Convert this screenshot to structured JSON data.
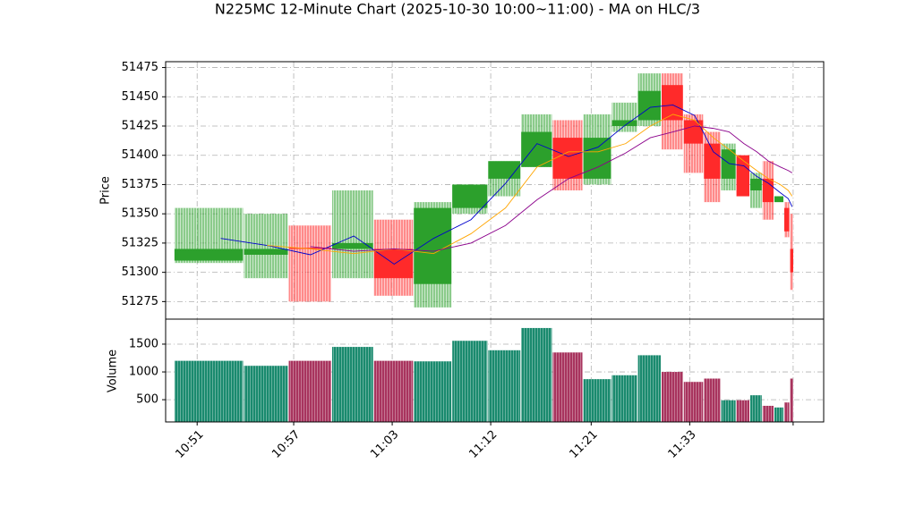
{
  "chart_data": {
    "type": "candlestick",
    "title": "N225MC 12-Minute Chart (2025-10-30 10:00~11:00) - MA on HLC/3",
    "ylabel": "Price",
    "volume_label": "Volume",
    "x": [
      0.24,
      0.71,
      1.15,
      1.59,
      2.0,
      2.4,
      2.78,
      3.13,
      3.45,
      3.77,
      4.07,
      4.35,
      4.6,
      4.83,
      5.05,
      5.24,
      5.4,
      5.55,
      5.68,
      5.8,
      5.92,
      6.0,
      6.04
    ],
    "xlim": [
      -0.32,
      6.36
    ],
    "xticks": [
      0,
      0.98,
      1.98,
      2.98,
      4.0,
      5.0,
      6.05
    ],
    "xtick_labels": [
      "10:51",
      "10:57",
      "11:03",
      "11:12",
      "11:21",
      "11:33",
      null
    ],
    "open": [
      51310,
      51315,
      51321,
      51320,
      51320,
      51290,
      51355,
      51380,
      51390,
      51415,
      51380,
      51425,
      51430,
      51460,
      51430,
      51410,
      51380,
      51400,
      51370,
      51380,
      51360,
      51355,
      51320
    ],
    "high": [
      51355,
      51350,
      51340,
      51370,
      51345,
      51360,
      51375,
      51395,
      51435,
      51430,
      51435,
      51445,
      51470,
      51470,
      51435,
      51420,
      51410,
      51400,
      51385,
      51395,
      51365,
      51360,
      51350
    ],
    "low": [
      51308,
      51295,
      51275,
      51295,
      51280,
      51270,
      51350,
      51365,
      51390,
      51370,
      51375,
      51420,
      51425,
      51405,
      51385,
      51360,
      51370,
      51365,
      51355,
      51345,
      51360,
      51330,
      51285
    ],
    "close": [
      51320,
      51320,
      51320,
      51325,
      51295,
      51355,
      51375,
      51395,
      51420,
      51380,
      51415,
      51430,
      51455,
      51430,
      51410,
      51380,
      51405,
      51365,
      51380,
      51360,
      51365,
      51335,
      51300
    ],
    "up_color": "#2ca02c",
    "down_color": "#ff2a2a",
    "volume": [
      1200,
      1110,
      1200,
      1450,
      1200,
      1190,
      1560,
      1390,
      1790,
      1350,
      870,
      940,
      1300,
      1000,
      820,
      880,
      490,
      490,
      580,
      390,
      360,
      450,
      880
    ],
    "volume_up_color": "#1a8a6e",
    "volume_down_color": "#a8345e",
    "ylim": [
      51260,
      51480
    ],
    "yticks": [
      51275,
      51300,
      51325,
      51350,
      51375,
      51400,
      51425,
      51450,
      51475
    ],
    "volume_ylim": [
      100,
      1950
    ],
    "volume_ticks": [
      500,
      1000,
      1500
    ],
    "grid": true,
    "ma": [
      {
        "color": "#0000cc",
        "values": [
          51329,
          51323,
          51315,
          51331,
          51307,
          51329,
          51345,
          51376,
          51410,
          51399,
          51407,
          51426,
          51441,
          51443,
          51434,
          51403,
          51393,
          51391,
          51382,
          51376,
          51368,
          51363,
          51356
        ]
      },
      {
        "color": "#ffa500",
        "values": [
          null,
          51323,
          51320,
          51316,
          51320,
          51316,
          51333,
          51355,
          51390,
          51403,
          51403,
          51410,
          51425,
          51435,
          51430,
          51415,
          51405,
          51395,
          51387,
          51380,
          51375,
          51370,
          51365
        ]
      },
      {
        "color": "#8b008b",
        "values": [
          null,
          null,
          51322,
          51318,
          51320,
          51318,
          51325,
          51340,
          51362,
          51380,
          51390,
          51402,
          51415,
          51420,
          51425,
          51423,
          51420,
          51410,
          51403,
          51395,
          51390,
          51387,
          51385
        ]
      }
    ]
  }
}
